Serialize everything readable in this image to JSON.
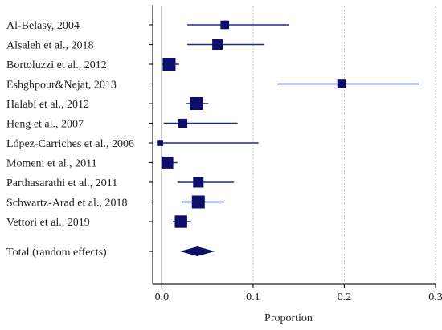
{
  "chart_data": {
    "type": "forest",
    "xlabel": "Proportion",
    "xlim": [
      -0.01,
      0.3
    ],
    "xticks": [
      0.0,
      0.1,
      0.2,
      0.3
    ],
    "xtick_labels": [
      "0.0",
      "0.1",
      "0.2",
      "0.3"
    ],
    "grid": true,
    "studies": [
      {
        "label": "Al-Belasy, 2004",
        "estimate": 0.069,
        "ci_low": 0.028,
        "ci_high": 0.139,
        "weight": 0.55
      },
      {
        "label": "Alsaleh et al., 2018",
        "estimate": 0.061,
        "ci_low": 0.028,
        "ci_high": 0.112,
        "weight": 0.75
      },
      {
        "label": "Bortoluzzi et al., 2012",
        "estimate": 0.008,
        "ci_low": 0.0,
        "ci_high": 0.019,
        "weight": 1.0
      },
      {
        "label": "Eshghpour&Nejat, 2013",
        "estimate": 0.197,
        "ci_low": 0.127,
        "ci_high": 0.282,
        "weight": 0.55
      },
      {
        "label": "Halabí et al., 2012",
        "estimate": 0.038,
        "ci_low": 0.027,
        "ci_high": 0.051,
        "weight": 1.0
      },
      {
        "label": "Heng et al., 2007",
        "estimate": 0.023,
        "ci_low": 0.002,
        "ci_high": 0.083,
        "weight": 0.6
      },
      {
        "label": "López-Carriches et al., 2006",
        "estimate": -0.002,
        "ci_low": -0.002,
        "ci_high": 0.106,
        "weight": 0.3
      },
      {
        "label": "Momeni et al., 2011",
        "estimate": 0.006,
        "ci_low": 0.0,
        "ci_high": 0.017,
        "weight": 0.9
      },
      {
        "label": "Parthasarathi et al., 2011",
        "estimate": 0.04,
        "ci_low": 0.017,
        "ci_high": 0.079,
        "weight": 0.75
      },
      {
        "label": "Schwartz-Arad et al., 2018",
        "estimate": 0.04,
        "ci_low": 0.022,
        "ci_high": 0.068,
        "weight": 1.0
      },
      {
        "label": "Vettori et al., 2019",
        "estimate": 0.021,
        "ci_low": 0.012,
        "ci_high": 0.032,
        "weight": 0.95
      }
    ],
    "total": {
      "label": "Total (random effects)",
      "estimate": 0.039,
      "ci_low": 0.02,
      "ci_high": 0.058
    },
    "colors": {
      "marker": "#0d0d6b",
      "ci": "#1f2a8f",
      "diamond": "#0d0d6b"
    }
  }
}
